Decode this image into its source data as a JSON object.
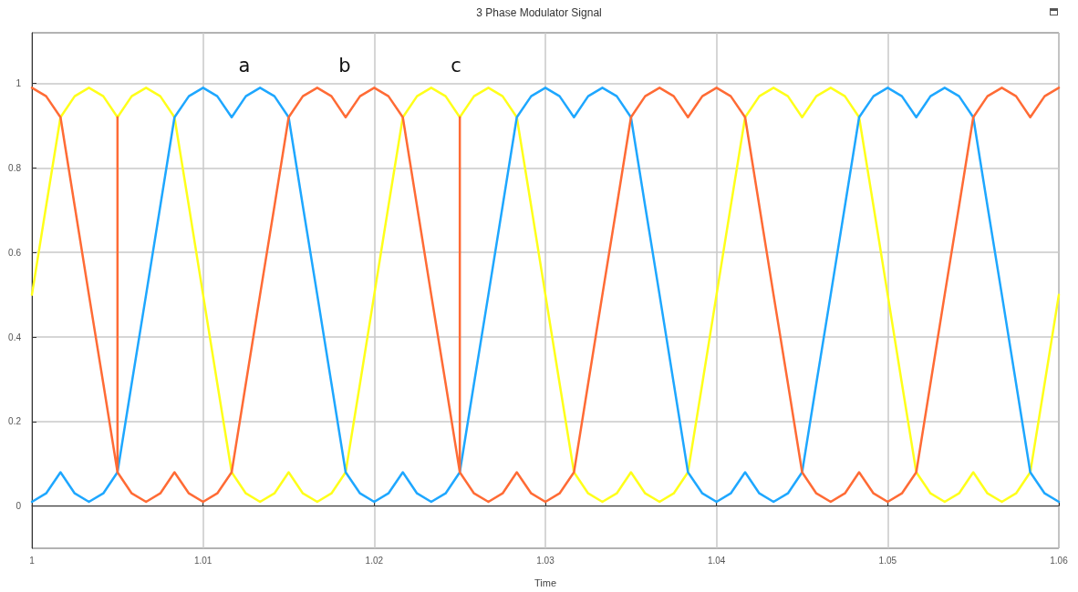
{
  "chart_data": {
    "type": "line",
    "title": "3 Phase Modulator Signal",
    "xlabel": "Time",
    "grid": true,
    "line_style": "solid",
    "xlim": [
      1,
      1.06
    ],
    "xticks": [
      1,
      1.01,
      1.02,
      1.03,
      1.04,
      1.05,
      1.06
    ],
    "ylim": [
      -0.1,
      1.12
    ],
    "yticks": [
      0,
      0.2,
      0.4,
      0.6,
      0.8,
      1
    ],
    "annotations": [
      "a",
      "b",
      "c"
    ],
    "x": [
      1,
      1.00083,
      1.00167,
      1.0025,
      1.00333,
      1.00417,
      1.005,
      1.00583,
      1.00667,
      1.0075,
      1.00833,
      1.00917,
      1.01,
      1.01083,
      1.01167,
      1.0125,
      1.01333,
      1.01417,
      1.015,
      1.01583,
      1.01667,
      1.0175,
      1.01833,
      1.01917,
      1.02,
      1.02083,
      1.02167,
      1.0225,
      1.02333,
      1.02417,
      1.025,
      1.02583,
      1.02667,
      1.0275,
      1.02833,
      1.02917,
      1.03,
      1.03083,
      1.03167,
      1.0325,
      1.03333,
      1.03417,
      1.035,
      1.03583,
      1.03667,
      1.0375,
      1.03833,
      1.03917,
      1.04,
      1.04083,
      1.04167,
      1.0425,
      1.04333,
      1.04417,
      1.045,
      1.04583,
      1.04667,
      1.0475,
      1.04833,
      1.04917,
      1.05,
      1.05083,
      1.05167,
      1.0525,
      1.05333,
      1.05417,
      1.055,
      1.05583,
      1.05667,
      1.0575,
      1.05833,
      1.05917,
      1.06
    ],
    "series": [
      {
        "color": "#ffff1a",
        "values": [
          0.5,
          0.71,
          0.92,
          0.97,
          0.99,
          0.97,
          0.92,
          0.97,
          0.99,
          0.97,
          0.92,
          0.71,
          0.5,
          0.29,
          0.08,
          0.03,
          0.01,
          0.03,
          0.08,
          0.03,
          0.01,
          0.03,
          0.08,
          0.29,
          0.5,
          0.71,
          0.92,
          0.97,
          0.99,
          0.97,
          0.92,
          0.97,
          0.99,
          0.97,
          0.92,
          0.71,
          0.5,
          0.29,
          0.08,
          0.03,
          0.01,
          0.03,
          0.08,
          0.03,
          0.01,
          0.03,
          0.08,
          0.29,
          0.5,
          0.71,
          0.92,
          0.97,
          0.99,
          0.97,
          0.92,
          0.97,
          0.99,
          0.97,
          0.92,
          0.71,
          0.5,
          0.29,
          0.08,
          0.03,
          0.01,
          0.03,
          0.08,
          0.03,
          0.01,
          0.03,
          0.08,
          0.29,
          0.5
        ]
      },
      {
        "color": "#1ea7ff",
        "values": [
          0.01,
          0.03,
          0.08,
          0.03,
          0.01,
          0.03,
          0.08,
          0.29,
          0.5,
          0.71,
          0.92,
          0.97,
          0.99,
          0.97,
          0.92,
          0.97,
          0.99,
          0.97,
          0.92,
          0.71,
          0.5,
          0.29,
          0.08,
          0.03,
          0.01,
          0.03,
          0.08,
          0.03,
          0.01,
          0.03,
          0.08,
          0.29,
          0.5,
          0.71,
          0.92,
          0.97,
          0.99,
          0.97,
          0.92,
          0.97,
          0.99,
          0.97,
          0.92,
          0.71,
          0.5,
          0.29,
          0.08,
          0.03,
          0.01,
          0.03,
          0.08,
          0.03,
          0.01,
          0.03,
          0.08,
          0.29,
          0.5,
          0.71,
          0.92,
          0.97,
          0.99,
          0.97,
          0.92,
          0.97,
          0.99,
          0.97,
          0.92,
          0.71,
          0.5,
          0.29,
          0.08,
          0.03,
          0.01
        ]
      },
      {
        "color": "#ff6b35",
        "x": [
          1,
          1.00083,
          1.00167,
          1.0025,
          1.00333,
          1.00417,
          1.005,
          1.005,
          1.005,
          1.00583,
          1.00667,
          1.0075,
          1.00833,
          1.00917,
          1.01,
          1.01083,
          1.01167,
          1.0125,
          1.01333,
          1.01417,
          1.015,
          1.01583,
          1.01667,
          1.0175,
          1.01833,
          1.01917,
          1.02,
          1.02083,
          1.02167,
          1.0225,
          1.02333,
          1.02417,
          1.025,
          1.025,
          1.025,
          1.02583,
          1.02667,
          1.0275,
          1.02833,
          1.02917,
          1.03,
          1.03083,
          1.03167,
          1.0325,
          1.03333,
          1.03417,
          1.035,
          1.03583,
          1.03667,
          1.0375,
          1.03833,
          1.03917,
          1.04,
          1.04083,
          1.04167,
          1.0425,
          1.04333,
          1.04417,
          1.045,
          1.04583,
          1.04667,
          1.0475,
          1.04833,
          1.04917,
          1.05,
          1.05083,
          1.05167,
          1.0525,
          1.05333,
          1.05417,
          1.055,
          1.05583,
          1.05667,
          1.0575,
          1.05833,
          1.05917,
          1.06
        ],
        "values": [
          0.99,
          0.97,
          0.92,
          0.71,
          0.5,
          0.29,
          0.08,
          0.92,
          0.08,
          0.03,
          0.01,
          0.03,
          0.08,
          0.03,
          0.01,
          0.03,
          0.08,
          0.29,
          0.5,
          0.71,
          0.92,
          0.97,
          0.99,
          0.97,
          0.92,
          0.97,
          0.99,
          0.97,
          0.92,
          0.71,
          0.5,
          0.29,
          0.08,
          0.92,
          0.08,
          0.03,
          0.01,
          0.03,
          0.08,
          0.03,
          0.01,
          0.03,
          0.08,
          0.29,
          0.5,
          0.71,
          0.92,
          0.97,
          0.99,
          0.97,
          0.92,
          0.97,
          0.99,
          0.97,
          0.92,
          0.71,
          0.5,
          0.29,
          0.08,
          0.03,
          0.01,
          0.03,
          0.08,
          0.03,
          0.01,
          0.03,
          0.08,
          0.29,
          0.5,
          0.71,
          0.92,
          0.97,
          0.99,
          0.97,
          0.92,
          0.97,
          0.99
        ]
      }
    ]
  }
}
